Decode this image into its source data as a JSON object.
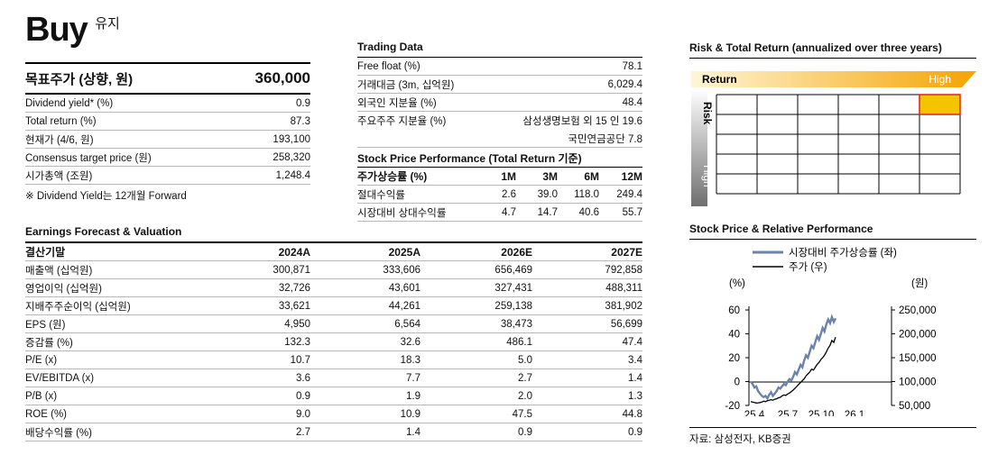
{
  "rating": {
    "label": "Buy",
    "sub": "유지"
  },
  "target": {
    "label": "목표주가 (상향, 원)",
    "value": "360,000"
  },
  "summary_rows": [
    {
      "label": "Dividend yield* (%)",
      "value": "0.9"
    },
    {
      "label": "Total return (%)",
      "value": "87.3"
    },
    {
      "label": "현재가 (4/6, 원)",
      "value": "193,100"
    },
    {
      "label": "Consensus target price (원)",
      "value": "258,320"
    },
    {
      "label": "시가총액 (조원)",
      "value": "1,248.4"
    }
  ],
  "summary_note": "※ Dividend Yield는 12개월 Forward",
  "trading": {
    "title": "Trading Data",
    "rows": [
      {
        "label": "Free float (%)",
        "value": "78.1"
      },
      {
        "label": "거래대금 (3m, 십억원)",
        "value": "6,029.4"
      },
      {
        "label": "외국인 지분율 (%)",
        "value": "48.4"
      },
      {
        "label": "주요주주 지분율 (%)",
        "value": "삼성생명보험 외 15 인 19.6"
      },
      {
        "label": "",
        "value": "국민연금공단 7.8"
      }
    ]
  },
  "performance": {
    "title": "Stock Price Performance (Total Return 기준)",
    "headers": [
      "주가상승률 (%)",
      "1M",
      "3M",
      "6M",
      "12M"
    ],
    "rows": [
      {
        "label": "절대수익률",
        "values": [
          "2.6",
          "39.0",
          "118.0",
          "249.4"
        ]
      },
      {
        "label": "시장대비 상대수익률",
        "values": [
          "4.7",
          "14.7",
          "40.6",
          "55.7"
        ]
      }
    ]
  },
  "earnings": {
    "title": "Earnings Forecast & Valuation",
    "headers": [
      "결산기말",
      "2024A",
      "2025A",
      "2026E",
      "2027E"
    ],
    "rows": [
      {
        "label": "매출액 (십억원)",
        "values": [
          "300,871",
          "333,606",
          "656,469",
          "792,858"
        ]
      },
      {
        "label": "영업이익 (십억원)",
        "values": [
          "32,726",
          "43,601",
          "327,431",
          "488,311"
        ]
      },
      {
        "label": "지배주주순이익 (십억원)",
        "values": [
          "33,621",
          "44,261",
          "259,138",
          "381,902"
        ]
      },
      {
        "label": "EPS (원)",
        "values": [
          "4,950",
          "6,564",
          "38,473",
          "56,699"
        ]
      },
      {
        "label": "증감률 (%)",
        "values": [
          "132.3",
          "32.6",
          "486.1",
          "47.4"
        ]
      },
      {
        "label": "P/E (x)",
        "values": [
          "10.7",
          "18.3",
          "5.0",
          "3.4"
        ]
      },
      {
        "label": "EV/EBITDA (x)",
        "values": [
          "3.6",
          "7.7",
          "2.7",
          "1.4"
        ]
      },
      {
        "label": "P/B (x)",
        "values": [
          "0.9",
          "1.9",
          "2.0",
          "1.3"
        ]
      },
      {
        "label": "ROE (%)",
        "values": [
          "9.0",
          "10.9",
          "47.5",
          "44.8"
        ]
      },
      {
        "label": "배당수익률 (%)",
        "values": [
          "2.7",
          "1.4",
          "0.9",
          "0.9"
        ]
      }
    ]
  },
  "risk": {
    "title": "Risk & Total Return (annualized over three years)",
    "return_label": "Return",
    "high_label": "High",
    "risk_label": "Risk",
    "risk_high_label": "High",
    "colors": {
      "gradient_start": "#fff6d8",
      "gradient_end": "#f5a300",
      "highlight": "#f5c400",
      "highlight_border": "#e02020"
    },
    "highlight_cell": {
      "row": 1,
      "col": 5
    }
  },
  "stock_chart": {
    "title": "Stock Price & Relative Performance",
    "legend": [
      {
        "name": "시장대비 주가상승률 (좌)",
        "color": "#6b82ad"
      },
      {
        "name": "주가 (우)",
        "color": "#000000"
      }
    ],
    "left_unit": "(%)",
    "right_unit": "(원)",
    "left_ticks": [
      "60",
      "40",
      "20",
      "0",
      "-20"
    ],
    "right_ticks": [
      "250,000",
      "200,000",
      "150,000",
      "100,000",
      "50,000"
    ],
    "x_ticks": [
      "25.4",
      "25.7",
      "25.10",
      "26.1"
    ]
  },
  "chart_data": {
    "type": "line",
    "x_ticks": [
      "25.4",
      "25.7",
      "25.10",
      "26.1"
    ],
    "left_axis": {
      "label": "(%)",
      "ylim": [
        -20,
        60
      ]
    },
    "right_axis": {
      "label": "(원)",
      "ylim": [
        50000,
        250000
      ]
    },
    "series": [
      {
        "name": "시장대비 주가상승률 (좌)",
        "axis": "left",
        "values": [
          0,
          -2,
          -5,
          -4,
          -8,
          -10,
          -12,
          -13,
          -12,
          -14,
          -11,
          -9,
          -12,
          -10,
          -8,
          -5,
          -6,
          -4,
          -2,
          -3,
          0,
          2,
          1,
          4,
          8,
          6,
          10,
          14,
          12,
          18,
          22,
          20,
          25,
          30,
          28,
          33,
          38,
          35,
          40,
          45,
          42,
          48,
          52,
          49,
          54,
          50,
          53
        ]
      },
      {
        "name": "주가 (우)",
        "axis": "right",
        "values": [
          58000,
          57000,
          56000,
          55000,
          55500,
          56000,
          57000,
          59000,
          58000,
          60000,
          61000,
          62000,
          61000,
          63000,
          64000,
          66000,
          67000,
          70000,
          72000,
          71000,
          74000,
          76000,
          79000,
          82000,
          86000,
          90000,
          94000,
          98000,
          102000,
          106000,
          112000,
          116000,
          120000,
          126000,
          124000,
          130000,
          136000,
          140000,
          146000,
          150000,
          155000,
          162000,
          170000,
          176000,
          186000,
          182000,
          193100
        ]
      }
    ]
  },
  "source": "자료: 삼성전자, KB증권"
}
